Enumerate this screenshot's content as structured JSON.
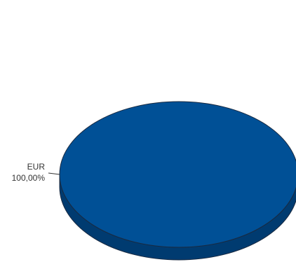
{
  "chart_data": {
    "type": "pie",
    "style": "3d",
    "title": "",
    "legend": "none",
    "slices": [
      {
        "category": "EUR",
        "value": 100.0,
        "value_label": "100,00%",
        "color": "#005096",
        "side_color": "#003b70",
        "edge_color": "#1a2a40"
      }
    ]
  }
}
